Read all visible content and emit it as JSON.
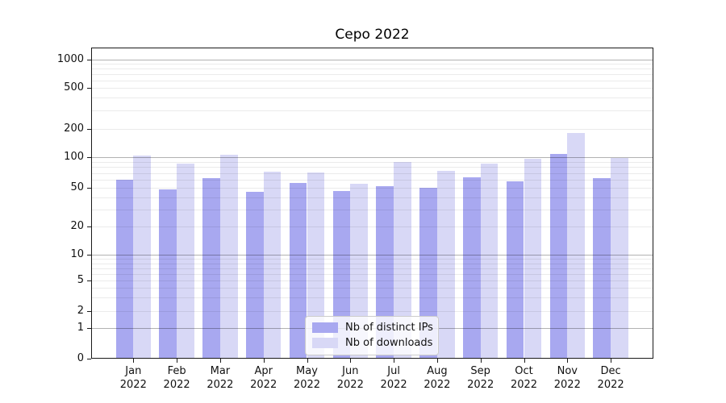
{
  "chart_data": {
    "type": "bar",
    "title": "Cepo 2022",
    "categories": [
      "Jan",
      "Feb",
      "Mar",
      "Apr",
      "May",
      "Jun",
      "Jul",
      "Aug",
      "Sep",
      "Oct",
      "Nov",
      "Dec"
    ],
    "category_year": "2022",
    "series": [
      {
        "name": "Nb of distinct IPs",
        "color": "#a8a8f0",
        "values": [
          60,
          48,
          63,
          46,
          56,
          47,
          52,
          50,
          64,
          58,
          108,
          63
        ]
      },
      {
        "name": "Nb of downloads",
        "color": "#d8d8f6",
        "values": [
          103,
          86,
          107,
          72,
          71,
          55,
          89,
          74,
          87,
          97,
          181,
          99
        ]
      }
    ],
    "yticks": [
      0,
      1,
      2,
      5,
      10,
      20,
      50,
      100,
      200,
      500,
      1000
    ],
    "yscale": "symlog",
    "ylim": [
      0,
      1340
    ],
    "xlabel": "",
    "ylabel": "",
    "grid": "major and minor horizontal gridlines drawn over bars",
    "legend_position": "lower center"
  },
  "colors": {
    "background": "#ffffff",
    "axis": "#1a1a1a",
    "bar_distinct_ips": "#a8a8f0",
    "bar_downloads": "#d8d8f6"
  }
}
